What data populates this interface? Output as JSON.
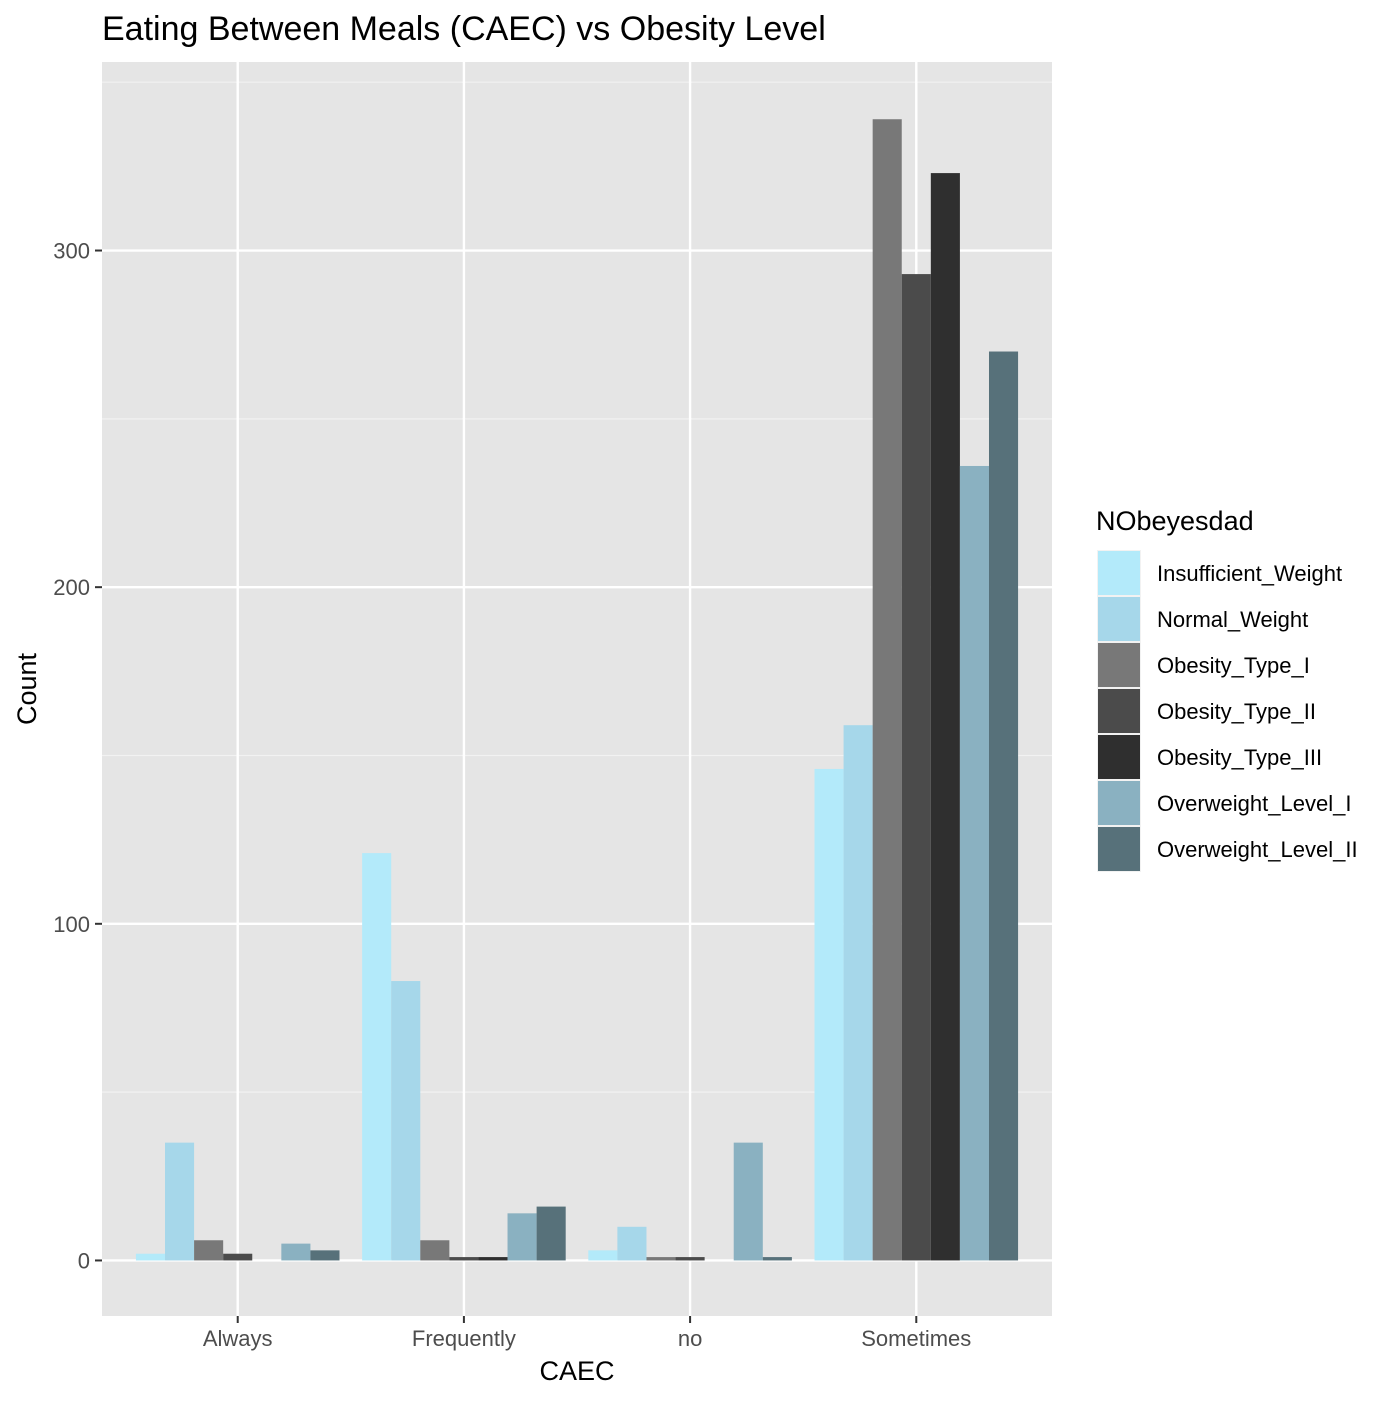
{
  "chart_data": {
    "type": "bar",
    "title": "Eating Between Meals (CAEC) vs Obesity Level",
    "xlabel": "CAEC",
    "ylabel": "Count",
    "categories": [
      "Always",
      "Frequently",
      "no",
      "Sometimes"
    ],
    "ylim": [
      -16.5,
      356
    ],
    "yticks": [
      0,
      100,
      200,
      300
    ],
    "grid": true,
    "legend": {
      "title": "NObeyesdad",
      "placement": "right"
    },
    "series": [
      {
        "name": "Insufficient_Weight",
        "color": "#B3EAFA",
        "values": [
          2,
          121,
          3,
          146
        ]
      },
      {
        "name": "Normal_Weight",
        "color": "#A6D7EA",
        "values": [
          35,
          83,
          10,
          159
        ]
      },
      {
        "name": "Obesity_Type_I",
        "color": "#787878",
        "values": [
          6,
          6,
          1,
          339
        ]
      },
      {
        "name": "Obesity_Type_II",
        "color": "#4B4B4B",
        "values": [
          2,
          1,
          1,
          293
        ]
      },
      {
        "name": "Obesity_Type_III",
        "color": "#2F2F2F",
        "values": [
          0,
          1,
          0,
          323
        ]
      },
      {
        "name": "Overweight_Level_I",
        "color": "#8AB1C1",
        "values": [
          5,
          14,
          35,
          236
        ]
      },
      {
        "name": "Overweight_Level_II",
        "color": "#57717A",
        "values": [
          3,
          16,
          1,
          270
        ]
      }
    ]
  }
}
